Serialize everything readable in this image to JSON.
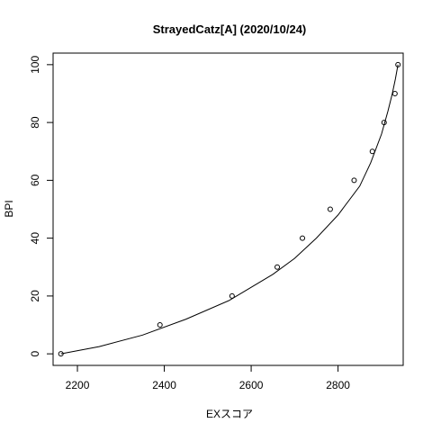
{
  "chart_data": {
    "type": "scatter",
    "title": "StrayedCatz[A] (2020/10/24)",
    "xlabel": "EXスコア",
    "ylabel": "BPI",
    "xlim": [
      2144,
      2950
    ],
    "ylim": [
      -4,
      104
    ],
    "xticks": [
      2200,
      2400,
      2600,
      2800
    ],
    "yticks": [
      0,
      20,
      40,
      60,
      80,
      100
    ],
    "grid": false,
    "points": {
      "x": [
        2162,
        2390,
        2556,
        2660,
        2718,
        2782,
        2837,
        2879,
        2906,
        2931,
        2938
      ],
      "y": [
        0,
        10,
        20,
        30,
        40,
        50,
        60,
        70,
        80,
        90,
        100
      ]
    },
    "fitted_curve": {
      "x": [
        2162,
        2250,
        2350,
        2450,
        2550,
        2650,
        2700,
        2750,
        2800,
        2850,
        2875,
        2900,
        2915,
        2925,
        2932,
        2938
      ],
      "y": [
        0,
        2.5,
        6.5,
        12,
        18.5,
        27.5,
        33,
        40,
        48,
        58,
        66,
        76,
        84,
        90,
        95,
        100
      ]
    }
  }
}
